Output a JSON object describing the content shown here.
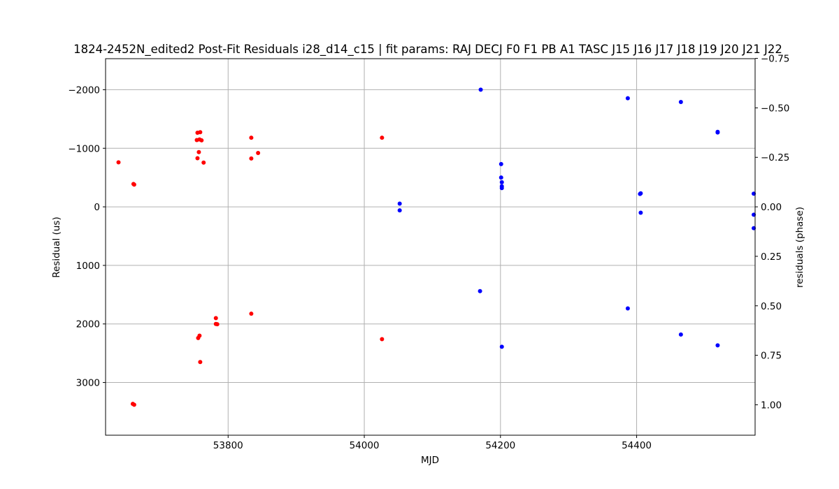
{
  "chart_data": {
    "type": "scatter",
    "title": "1824-2452N_edited2 Post-Fit Residuals i28_d14_c15 | fit params: RAJ DECJ F0 F1 PB A1 TASC J15 J16 J17 J18 J19 J20 J21 J22",
    "xlabel": "MJD",
    "ylabel": "Residual (us)",
    "y2label": "residuals (phase)",
    "xlim": [
      53620,
      54574
    ],
    "ylim": [
      3900,
      -2530
    ],
    "y_inverted": true,
    "y2lim": [
      1.1538,
      -0.7485
    ],
    "x_ticks": [
      53800,
      54000,
      54200,
      54400
    ],
    "y_ticks": [
      -2000,
      -1000,
      0,
      1000,
      2000,
      3000
    ],
    "y_tick_labels": [
      "−2000",
      "−1000",
      "0",
      "1000",
      "2000",
      "3000"
    ],
    "y2_ticks": [
      -0.75,
      -0.5,
      -0.25,
      0.0,
      0.25,
      0.5,
      0.75,
      1.0
    ],
    "y2_tick_labels": [
      "−0.75",
      "−0.50",
      "−0.25",
      "0.00",
      "0.25",
      "0.50",
      "0.75",
      "1.00"
    ],
    "grid": true,
    "series": [
      {
        "color": "#ff0000",
        "points": [
          [
            53639,
            -760
          ],
          [
            53661,
            -390
          ],
          [
            53662,
            -380
          ],
          [
            53755,
            -1265
          ],
          [
            53759,
            -1275
          ],
          [
            53754,
            -1140
          ],
          [
            53758,
            -1150
          ],
          [
            53761,
            -1135
          ],
          [
            53757,
            -935
          ],
          [
            53755,
            -830
          ],
          [
            53764,
            -755
          ],
          [
            53834,
            -1180
          ],
          [
            53844,
            -920
          ],
          [
            53834,
            -825
          ],
          [
            53756,
            2240
          ],
          [
            53758,
            2200
          ],
          [
            53759,
            2650
          ],
          [
            53782,
            1900
          ],
          [
            53782,
            2000
          ],
          [
            53784,
            2005
          ],
          [
            53834,
            1825
          ],
          [
            53660,
            3365
          ],
          [
            53662,
            3380
          ],
          [
            54026,
            -1180
          ],
          [
            54026,
            2260
          ]
        ]
      },
      {
        "color": "#0000ff",
        "points": [
          [
            54052,
            -55
          ],
          [
            54052,
            60
          ],
          [
            54171,
            -2000
          ],
          [
            54170,
            1440
          ],
          [
            54201,
            -730
          ],
          [
            54201,
            -500
          ],
          [
            54202,
            -420
          ],
          [
            54202,
            -350
          ],
          [
            54202,
            -320
          ],
          [
            54202,
            2390
          ],
          [
            54387,
            -1855
          ],
          [
            54387,
            1735
          ],
          [
            54405,
            -220
          ],
          [
            54406,
            -230
          ],
          [
            54406,
            100
          ],
          [
            54465,
            -1790
          ],
          [
            54465,
            2180
          ],
          [
            54519,
            -1280
          ],
          [
            54519,
            -1270
          ],
          [
            54519,
            2365
          ],
          [
            54572,
            -225
          ],
          [
            54572,
            135
          ],
          [
            54572,
            365
          ]
        ]
      }
    ]
  }
}
